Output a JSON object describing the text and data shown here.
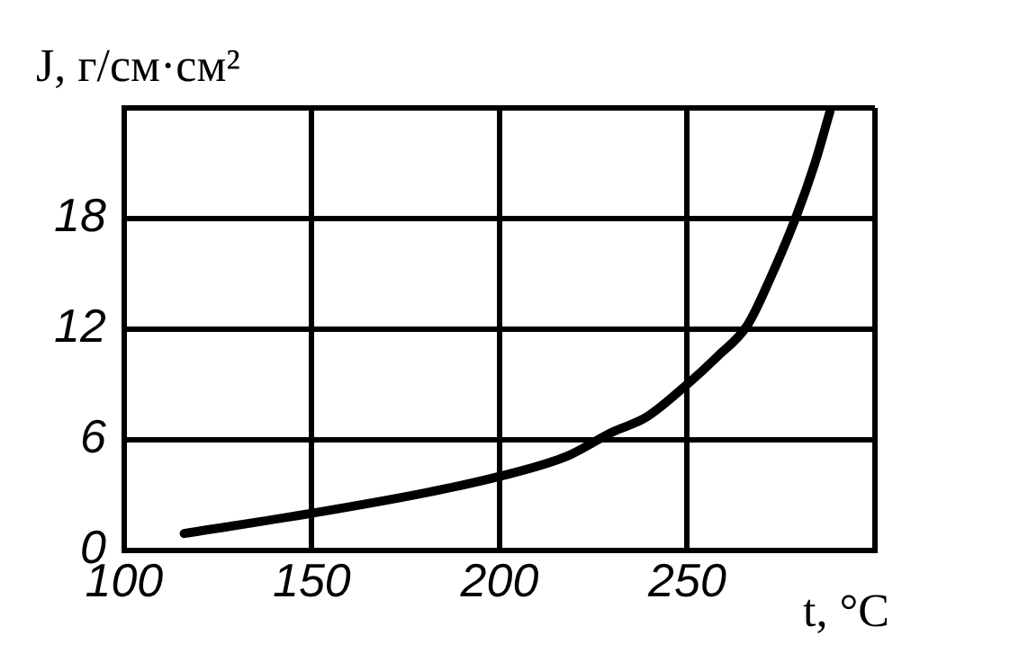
{
  "chart_data": {
    "type": "line",
    "xlabel": "t, °C",
    "ylabel": "J, г/см·см²",
    "xlim": [
      100,
      300
    ],
    "xticks": [
      100,
      150,
      200,
      250,
      {
        "value": 300,
        "label": null
      }
    ],
    "ylim": [
      0,
      24
    ],
    "yticks": [
      0,
      6,
      12,
      18,
      {
        "value": 24,
        "label": null
      }
    ],
    "grid": true,
    "legend": false,
    "marker": "none",
    "line_style": "solid",
    "series": [
      {
        "color": "#000000",
        "x": [
          116,
          150,
          180,
          200,
          218,
          230,
          239,
          250,
          258,
          266,
          272,
          279,
          284,
          288
        ],
        "values": [
          0.9,
          2.0,
          3.1,
          4.0,
          5.1,
          6.4,
          7.2,
          9.0,
          10.5,
          12.2,
          14.7,
          18.1,
          21.0,
          23.8
        ]
      }
    ]
  }
}
